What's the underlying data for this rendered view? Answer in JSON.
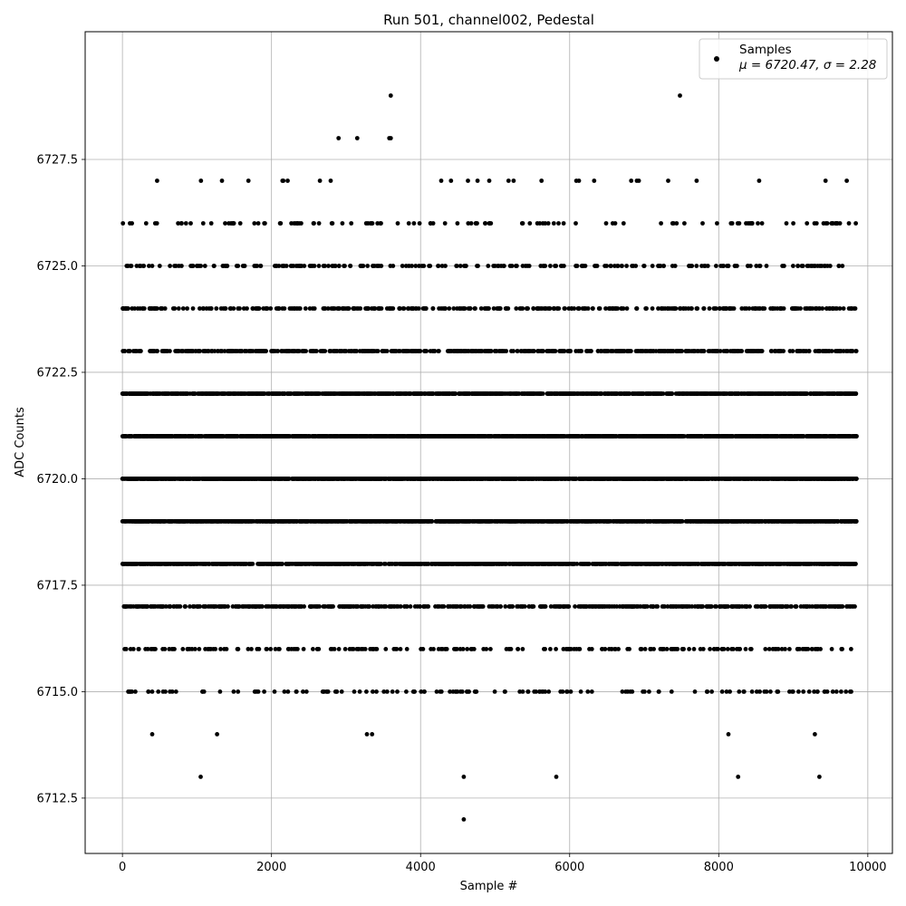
{
  "chart_data": {
    "type": "scatter",
    "title": "Run 501, channel002, Pedestal",
    "xlabel": "Sample #",
    "ylabel": "ADC Counts",
    "xlim": [
      -500,
      10330
    ],
    "ylim": [
      6711.2,
      6730.5
    ],
    "xticks": [
      0,
      2000,
      4000,
      6000,
      8000,
      10000
    ],
    "yticks": [
      6712.5,
      6715.0,
      6717.5,
      6720.0,
      6722.5,
      6725.0,
      6727.5
    ],
    "grid": true,
    "legend": {
      "placement": "top-right",
      "entries": [
        {
          "name": "Samples",
          "stats": "μ = 6720.47, σ = 2.28"
        }
      ]
    },
    "point_color": "#000000",
    "x_range": [
      0,
      9850
    ],
    "level_counts": {
      "6712": 1,
      "6713": 5,
      "6714": 6,
      "6715": 150,
      "6716": 230,
      "6717": 620,
      "6718": 1320,
      "6719": 1820,
      "6720": 2060,
      "6721": 1800,
      "6722": 1320,
      "6723": 650,
      "6724": 380,
      "6725": 230,
      "6726": 120,
      "6727": 28,
      "6728": 4,
      "6729": 2
    },
    "outliers": [
      {
        "x": 1050,
        "y": 6713
      },
      {
        "x": 4580,
        "y": 6713
      },
      {
        "x": 5820,
        "y": 6713
      },
      {
        "x": 8260,
        "y": 6713
      },
      {
        "x": 9350,
        "y": 6713
      },
      {
        "x": 4580,
        "y": 6712
      },
      {
        "x": 400,
        "y": 6714
      },
      {
        "x": 1270,
        "y": 6714
      },
      {
        "x": 3280,
        "y": 6714
      },
      {
        "x": 3350,
        "y": 6714
      },
      {
        "x": 8130,
        "y": 6714
      },
      {
        "x": 9290,
        "y": 6714
      },
      {
        "x": 2900,
        "y": 6728
      },
      {
        "x": 3150,
        "y": 6728
      },
      {
        "x": 3580,
        "y": 6728
      },
      {
        "x": 3600,
        "y": 6728
      },
      {
        "x": 3600,
        "y": 6729
      },
      {
        "x": 7480,
        "y": 6729
      }
    ]
  }
}
